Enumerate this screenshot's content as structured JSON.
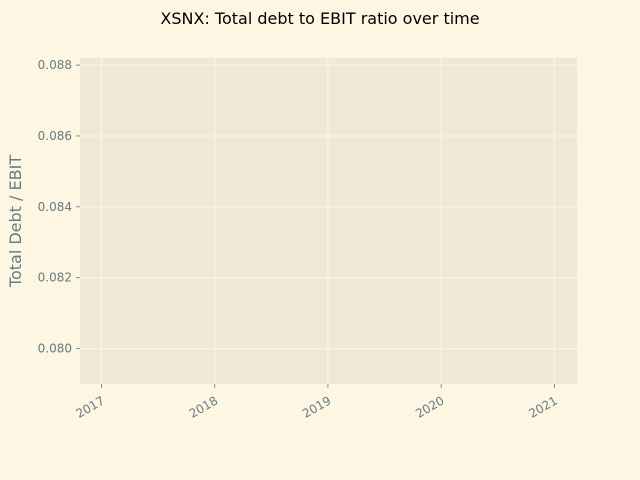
{
  "chart_data": {
    "type": "line",
    "title": "XSNX: Total debt to EBIT ratio over time",
    "xlabel": "",
    "ylabel": "Total Debt / EBIT",
    "x_ticks": [
      "2017",
      "2018",
      "2019",
      "2020",
      "2021"
    ],
    "y_ticks": [
      "0.080",
      "0.082",
      "0.084",
      "0.086",
      "0.088"
    ],
    "x_tick_values": [
      2017,
      2018,
      2019,
      2020,
      2021
    ],
    "y_tick_values": [
      0.08,
      0.082,
      0.084,
      0.086,
      0.088
    ],
    "xlim": [
      2016.81,
      2021.2
    ],
    "ylim": [
      0.079,
      0.0882
    ],
    "series": [],
    "grid": true,
    "colors": {
      "figure_background": "#fdf6e3",
      "axes_background": "#eee8d5",
      "grid": "#fdf6e3",
      "tick_label": "#657b83",
      "ylabel": "#657b83",
      "title": "#000000"
    }
  }
}
